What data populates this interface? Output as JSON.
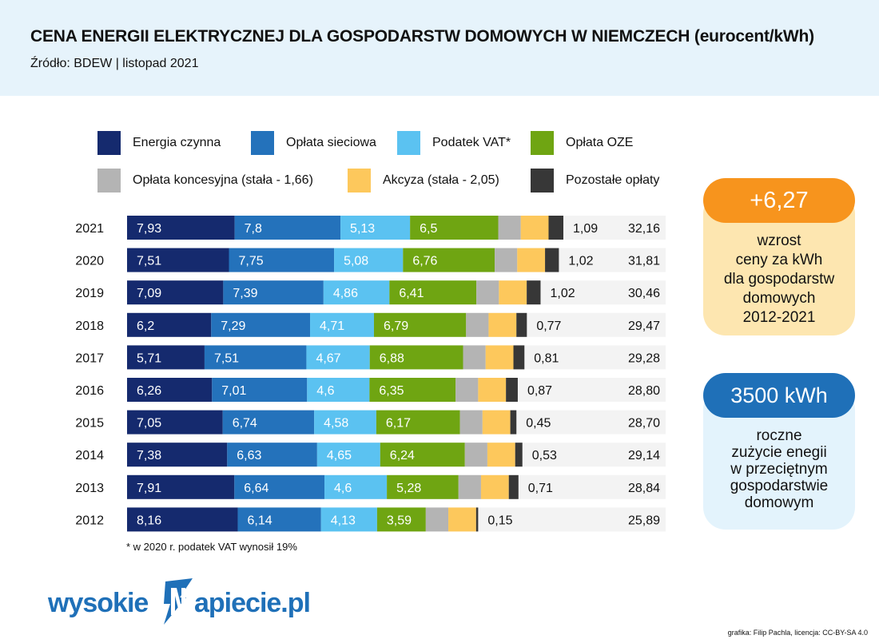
{
  "header": {
    "title": "CENA ENERGII ELEKTRYCZNEJ DLA GOSPODARSTW DOMOWYCH W NIEMCZECH (eurocent/kWh)",
    "source": "Źródło:  BDEW | listopad 2021"
  },
  "legend": [
    {
      "label": "Energia czynna",
      "color": "#152a6e"
    },
    {
      "label": "Opłata sieciowa",
      "color": "#2472bb"
    },
    {
      "label": "Podatek VAT*",
      "color": "#5bc2f1"
    },
    {
      "label": "Opłata OZE",
      "color": "#6fa512"
    },
    {
      "label": "Opłata koncesyjna (stała - 1,66)",
      "color": "#b4b4b4"
    },
    {
      "label": "Akcyza (stała - 2,05)",
      "color": "#fdc85c"
    },
    {
      "label": "Pozostałe opłaty",
      "color": "#373737"
    }
  ],
  "chart_data": {
    "type": "bar",
    "orientation": "horizontal",
    "stacked": true,
    "categories": [
      "2021",
      "2020",
      "2019",
      "2018",
      "2017",
      "2016",
      "2015",
      "2014",
      "2013",
      "2012"
    ],
    "series": [
      {
        "name": "Energia czynna",
        "values": [
          7.93,
          7.51,
          7.09,
          6.2,
          5.71,
          6.26,
          7.05,
          7.38,
          7.91,
          8.16
        ],
        "labels": [
          "7,93",
          "7,51",
          "7,09",
          "6,2",
          "5,71",
          "6,26",
          "7,05",
          "7,38",
          "7,91",
          "8,16"
        ]
      },
      {
        "name": "Opłata sieciowa",
        "values": [
          7.8,
          7.75,
          7.39,
          7.29,
          7.51,
          7.01,
          6.74,
          6.63,
          6.64,
          6.14
        ],
        "labels": [
          "7,8",
          "7,75",
          "7,39",
          "7,29",
          "7,51",
          "7,01",
          "6,74",
          "6,63",
          "6,64",
          "6,14"
        ]
      },
      {
        "name": "Podatek VAT*",
        "values": [
          5.13,
          5.08,
          4.86,
          4.71,
          4.67,
          4.6,
          4.58,
          4.65,
          4.6,
          4.13
        ],
        "labels": [
          "5,13",
          "5,08",
          "4,86",
          "4,71",
          "4,67",
          "4,6",
          "4,58",
          "4,65",
          "4,6",
          "4,13"
        ]
      },
      {
        "name": "Opłata OZE",
        "values": [
          6.5,
          6.76,
          6.41,
          6.79,
          6.88,
          6.35,
          6.17,
          6.24,
          5.28,
          3.59
        ],
        "labels": [
          "6,5",
          "6,76",
          "6,41",
          "6,79",
          "6,88",
          "6,35",
          "6,17",
          "6,24",
          "5,28",
          "3,59"
        ]
      },
      {
        "name": "Opłata koncesyjna (stała - 1,66)",
        "values": [
          1.66,
          1.66,
          1.66,
          1.66,
          1.66,
          1.66,
          1.66,
          1.66,
          1.66,
          1.66
        ]
      },
      {
        "name": "Akcyza (stała - 2,05)",
        "values": [
          2.05,
          2.05,
          2.05,
          2.05,
          2.05,
          2.05,
          2.05,
          2.05,
          2.05,
          2.05
        ]
      },
      {
        "name": "Pozostałe opłaty",
        "values": [
          1.09,
          1.02,
          1.02,
          0.77,
          0.81,
          0.87,
          0.45,
          0.53,
          0.71,
          0.15
        ],
        "labels": [
          "1,09",
          "1,02",
          "1,02",
          "0,77",
          "0,81",
          "0,87",
          "0,45",
          "0,53",
          "0,71",
          "0,15"
        ]
      }
    ],
    "totals": [
      "32,16",
      "31,81",
      "30,46",
      "29,47",
      "29,28",
      "28,80",
      "28,70",
      "29,14",
      "28,84",
      "25,89"
    ],
    "xlim": [
      0,
      39.7
    ]
  },
  "footnote": "* w 2020 r. podatek VAT wynosił 19%",
  "card_increase": {
    "value": "+6,27",
    "lines": [
      "wzrost",
      "ceny za kWh",
      "dla gospodarstw",
      "domowych",
      "2012-2021"
    ]
  },
  "card_consumption": {
    "value": "3500 kWh",
    "lines": [
      "roczne",
      "zużycie enegii",
      "w przeciętnym",
      "gospodarstwie",
      "domowym"
    ]
  },
  "logo": {
    "text_left": "wysokie",
    "text_right": "apiecie.pl"
  },
  "credit": "grafika: Filip Pachla, licencja: CC-BY-SA 4.0"
}
